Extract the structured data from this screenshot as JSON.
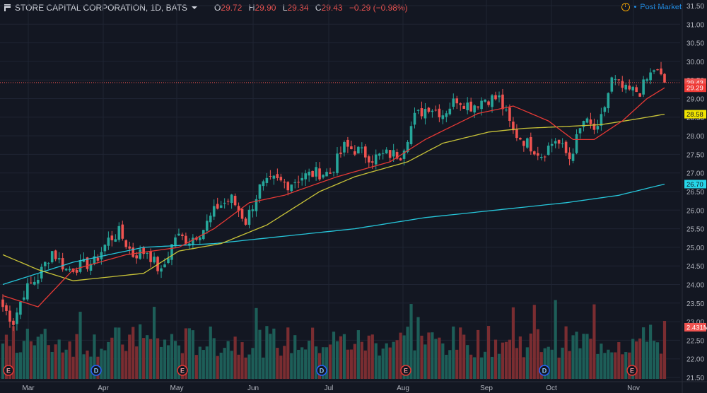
{
  "header": {
    "title": "STORE CAPITAL CORPORATION, 1D, BATS",
    "o_label": "O",
    "o_value": "29.72",
    "h_label": "H",
    "h_value": "29.90",
    "l_label": "L",
    "l_value": "29.34",
    "c_label": "C",
    "c_value": "29.43",
    "change": "−0.29 (−0.98%)",
    "post_market": "Post Market"
  },
  "colors": {
    "background": "#131722",
    "up": "#26a69a",
    "down": "#ef5350",
    "ma_fast": "#e53935",
    "ma_mid": "#c8c338",
    "ma_slow": "#26c6da",
    "grid": "#1f2433"
  },
  "chart_data": {
    "type": "candlestick",
    "y_range": [
      21.5,
      31.5
    ],
    "y_ticks": [
      "31.50",
      "31.00",
      "30.50",
      "30.00",
      "29.50",
      "29.00",
      "28.50",
      "28.00",
      "27.50",
      "27.00",
      "26.50",
      "26.00",
      "25.50",
      "25.00",
      "24.50",
      "24.00",
      "23.50",
      "23.00",
      "22.50",
      "22.00",
      "21.50"
    ],
    "x_labels": [
      "Mar",
      "Apr",
      "May",
      "Jun",
      "Jul",
      "Aug",
      "Sep",
      "Oct",
      "Nov"
    ],
    "price_anchors": [
      [
        0,
        23.4
      ],
      [
        3,
        23.0
      ],
      [
        6,
        23.8
      ],
      [
        10,
        24.2
      ],
      [
        14,
        24.9
      ],
      [
        18,
        24.4
      ],
      [
        22,
        24.5
      ],
      [
        26,
        24.6
      ],
      [
        30,
        25.2
      ],
      [
        33,
        25.4
      ],
      [
        37,
        24.8
      ],
      [
        41,
        24.9
      ],
      [
        45,
        24.3
      ],
      [
        49,
        25.3
      ],
      [
        53,
        25.2
      ],
      [
        57,
        25.5
      ],
      [
        61,
        26.1
      ],
      [
        65,
        26.3
      ],
      [
        69,
        25.7
      ],
      [
        73,
        26.6
      ],
      [
        77,
        26.8
      ],
      [
        81,
        26.7
      ],
      [
        85,
        26.9
      ],
      [
        89,
        27.0
      ],
      [
        93,
        27.0
      ],
      [
        97,
        27.7
      ],
      [
        101,
        27.6
      ],
      [
        105,
        27.4
      ],
      [
        109,
        27.5
      ],
      [
        113,
        27.5
      ],
      [
        117,
        28.5
      ],
      [
        121,
        28.8
      ],
      [
        125,
        28.6
      ],
      [
        129,
        29.0
      ],
      [
        133,
        28.8
      ],
      [
        137,
        29.0
      ],
      [
        141,
        29.0
      ],
      [
        145,
        28.1
      ],
      [
        149,
        27.8
      ],
      [
        153,
        27.5
      ],
      [
        157,
        27.9
      ],
      [
        161,
        27.4
      ],
      [
        165,
        28.4
      ],
      [
        169,
        28.1
      ],
      [
        173,
        29.5
      ],
      [
        177,
        29.2
      ],
      [
        181,
        29.2
      ],
      [
        185,
        29.8
      ],
      [
        188,
        29.43
      ]
    ],
    "ma_fast": [
      [
        0,
        23.7
      ],
      [
        10,
        23.4
      ],
      [
        20,
        24.4
      ],
      [
        35,
        24.8
      ],
      [
        50,
        25.0
      ],
      [
        60,
        25.5
      ],
      [
        70,
        26.2
      ],
      [
        80,
        26.4
      ],
      [
        95,
        26.9
      ],
      [
        110,
        27.3
      ],
      [
        120,
        27.9
      ],
      [
        135,
        28.6
      ],
      [
        145,
        28.8
      ],
      [
        155,
        28.4
      ],
      [
        162,
        27.9
      ],
      [
        168,
        27.9
      ],
      [
        176,
        28.4
      ],
      [
        183,
        29.0
      ],
      [
        188,
        29.29
      ]
    ],
    "ma_mid": [
      [
        0,
        24.8
      ],
      [
        10,
        24.4
      ],
      [
        20,
        24.1
      ],
      [
        40,
        24.3
      ],
      [
        50,
        24.9
      ],
      [
        62,
        25.1
      ],
      [
        75,
        25.6
      ],
      [
        90,
        26.5
      ],
      [
        100,
        26.9
      ],
      [
        115,
        27.3
      ],
      [
        125,
        27.8
      ],
      [
        138,
        28.1
      ],
      [
        148,
        28.2
      ],
      [
        160,
        28.25
      ],
      [
        170,
        28.3
      ],
      [
        180,
        28.45
      ],
      [
        188,
        28.58
      ]
    ],
    "ma_slow": [
      [
        0,
        24.0
      ],
      [
        20,
        24.6
      ],
      [
        40,
        25.0
      ],
      [
        60,
        25.1
      ],
      [
        80,
        25.3
      ],
      [
        100,
        25.5
      ],
      [
        120,
        25.8
      ],
      [
        140,
        26.0
      ],
      [
        160,
        26.2
      ],
      [
        175,
        26.4
      ],
      [
        188,
        26.7
      ]
    ],
    "price_markers": [
      {
        "label": "29.43",
        "value": 29.43,
        "bg": "#ef5350",
        "fg": "#ffffff"
      },
      {
        "label": "29.29",
        "value": 29.29,
        "bg": "#ef3a36",
        "fg": "#ffffff"
      },
      {
        "label": "28.58",
        "value": 28.58,
        "bg": "#f0e400",
        "fg": "#131722"
      },
      {
        "label": "26.70",
        "value": 26.7,
        "bg": "#26d6e8",
        "fg": "#131722"
      },
      {
        "label": "2.431M",
        "value": 22.85,
        "bg": "#ef5350",
        "fg": "#ffffff"
      }
    ],
    "events": [
      "E",
      "D",
      "E",
      "D",
      "E",
      "D",
      "E"
    ]
  }
}
